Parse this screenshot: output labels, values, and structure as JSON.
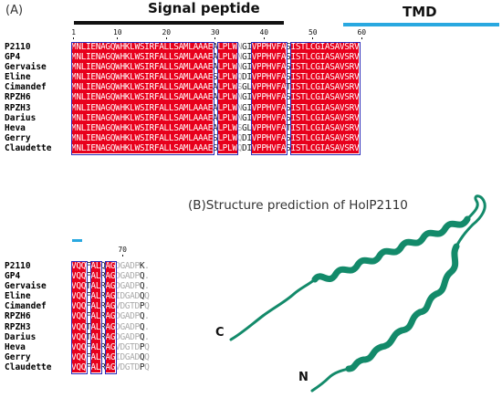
{
  "panel_a": {
    "label": "(A)",
    "signal_peptide_label": "Signal peptide",
    "tmd_label": "TMD",
    "ruler_ticks": [
      "1",
      "10",
      "20",
      "30",
      "40",
      "50",
      "60"
    ],
    "ruler_ticks_lower": [
      "70"
    ],
    "names": [
      "P2110",
      "GP4",
      "Gervaise",
      "Eline",
      "Cimandef",
      "RPZH6",
      "RPZH3",
      "Darius",
      "Heva",
      "Gerry",
      "Claudette"
    ],
    "seq_top": [
      "MNLIENAGQWHKLWSIRFALLSAMLAAAEALPLWNGIVPPHVFASISTLCGIASAVSRV",
      "MNLIENAGQWHKLWSIRFALLSAMLAAAEALPLWNGIVPPHVFASISTLCGIASAVSRV",
      "MNLIENAGQWHKLWSIRFALLSAMLAAAEALPLWNGIVPPHVFASISTLCGIASAVSRV",
      "MNLIENAGQWHKLWSIRFALLSAMLAAAESLPLWQDIVPPHVFASISTLCGIASAVSRV",
      "MNLIENAGQWHKLWSIRFALLSAMLAAAEALPLWSGLVPPHVFATISTLCGIASAVSRV",
      "MNLIENAGQWHKLWSIRFALLSAMLAAAEALPLWNGIVPPHVFASISTLCGIASAVSRV",
      "MNLIENAGQWHKLWSIRFALLSAMLAAAEALPLWNGIVPPHVFASISTLCGIASAVSRV",
      "MNLIENAGQWHKLWSIRFALLSAMLAAAEALPLWNGIVPPHVFASISTLCGIASAVSRV",
      "MNLIENAGQWHKLWSIRFALLSAMLAAAEALPLWSGLVPPHVFATISTLCGIASAVSRV",
      "MNLIENAGQWHKLWSIRFALLSAMLAAAESLPLWQDIVPPHVFASISTLCGIASAVSRV",
      "MNLIENAGQWHKLWSIRFALLSAMLAAAESLPLWQDIVPPHVFASISTLCGIASAVSRV"
    ],
    "seq_bottom": [
      "VQQFALQAGDGADPK.",
      "VQQFALRAGDGADPQ.",
      "VQQTALRAGDGADPQ.",
      "VQQFALRAGIDGADQQ",
      "VQQFALRAGVDGTDPQ",
      "VQQFALRAGDGADPQ.",
      "VQQTALRAGDGADPQ.",
      "VQQTALRAGDGADPQ.",
      "VQQFALRAGVDGTDPQ",
      "VQQFALRAGIDGADQQ",
      "VQQFALRAGVDGTDPQ"
    ]
  },
  "panel_b": {
    "title": "(B)Structure prediction of HolP2110",
    "c_label": "C",
    "n_label": "N"
  },
  "colors": {
    "conserved": "#e8001c",
    "signal_bar": "#111111",
    "tmd_bar": "#29a8e0",
    "helix": "#138a6a",
    "box": "#2a2ab8"
  }
}
